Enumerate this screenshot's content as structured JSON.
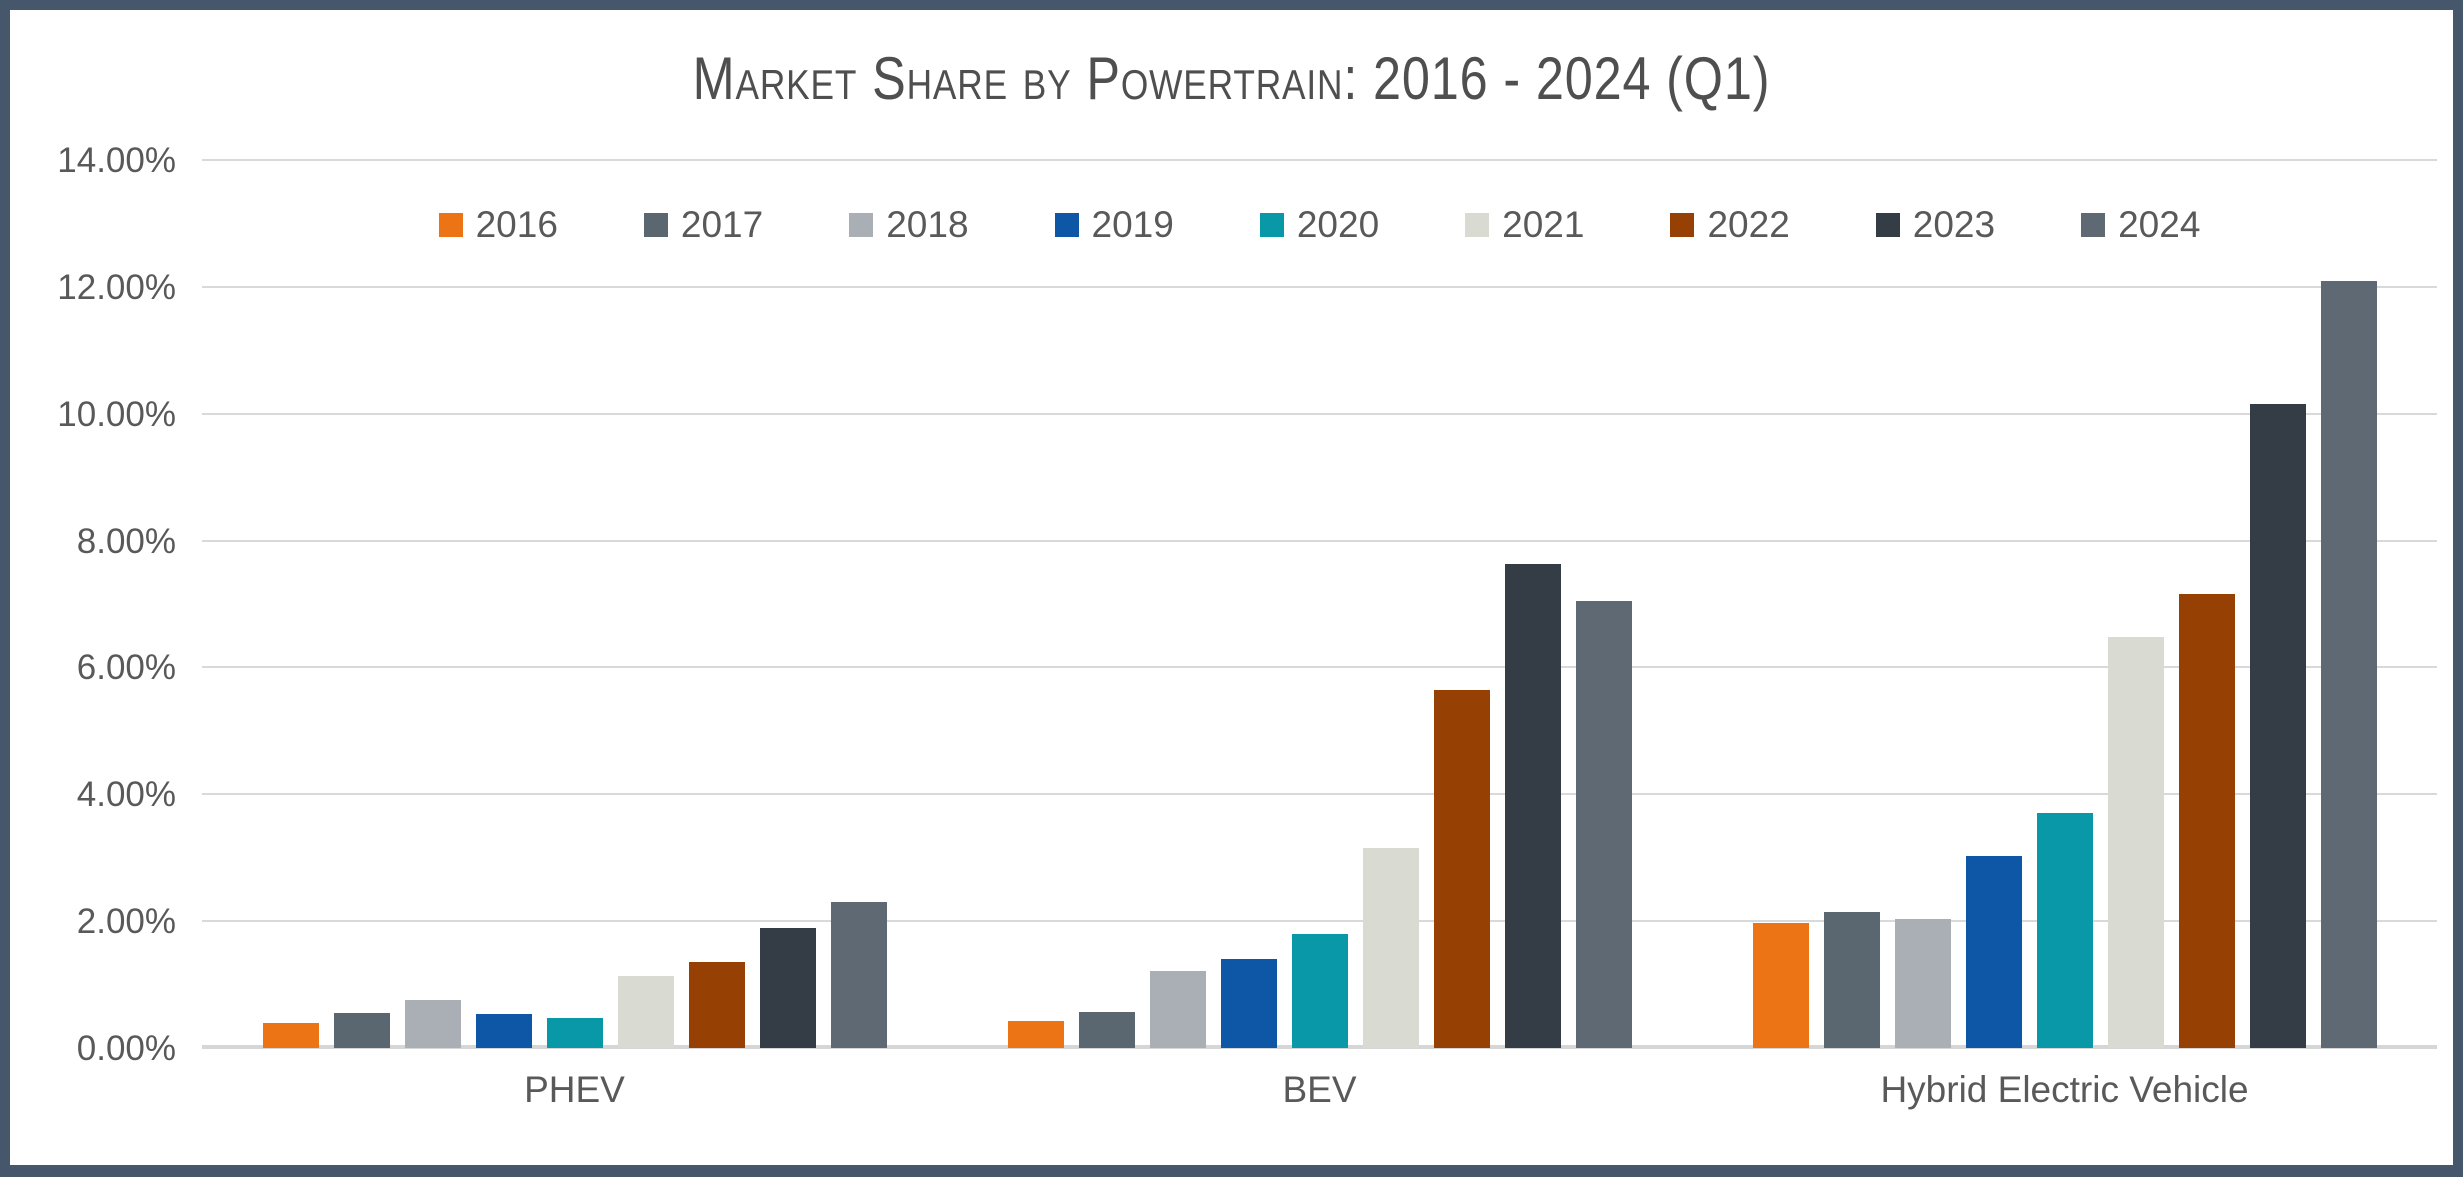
{
  "title": "Market Share by Powertrain: 2016 - 2024 (Q1)",
  "chart_data": {
    "type": "bar",
    "title": "Market Share by Powertrain: 2016 - 2024 (Q1)",
    "categories": [
      "PHEV",
      "BEV",
      "Hybrid Electric Vehicle"
    ],
    "series": [
      {
        "name": "2016",
        "color": "#EC7414",
        "values": [
          0.4,
          0.43,
          1.97
        ]
      },
      {
        "name": "2017",
        "color": "#5B6770",
        "values": [
          0.55,
          0.57,
          2.15
        ]
      },
      {
        "name": "2018",
        "color": "#A9AFB5",
        "values": [
          0.75,
          1.22,
          2.03
        ]
      },
      {
        "name": "2019",
        "color": "#0D57A6",
        "values": [
          0.54,
          1.41,
          3.02
        ]
      },
      {
        "name": "2020",
        "color": "#0998A8",
        "values": [
          0.47,
          1.79,
          3.7
        ]
      },
      {
        "name": "2021",
        "color": "#D9DAD2",
        "values": [
          1.13,
          3.15,
          6.48
        ]
      },
      {
        "name": "2022",
        "color": "#964003",
        "values": [
          1.35,
          5.65,
          7.16
        ]
      },
      {
        "name": "2023",
        "color": "#343C46",
        "values": [
          1.9,
          7.63,
          10.15
        ]
      },
      {
        "name": "2024",
        "color": "#5E6973",
        "values": [
          2.3,
          7.05,
          12.1
        ]
      }
    ],
    "ylim": [
      0,
      14
    ],
    "ytick_step": 2,
    "yticks": [
      "0.00%",
      "2.00%",
      "4.00%",
      "6.00%",
      "8.00%",
      "10.00%",
      "12.00%",
      "14.00%"
    ],
    "grid": true,
    "legend_position": "top-center"
  },
  "colors": {
    "frame_border": "#46566B",
    "gridline": "#D9D9D9",
    "text": "#595959",
    "background": "#FFFFFF"
  }
}
